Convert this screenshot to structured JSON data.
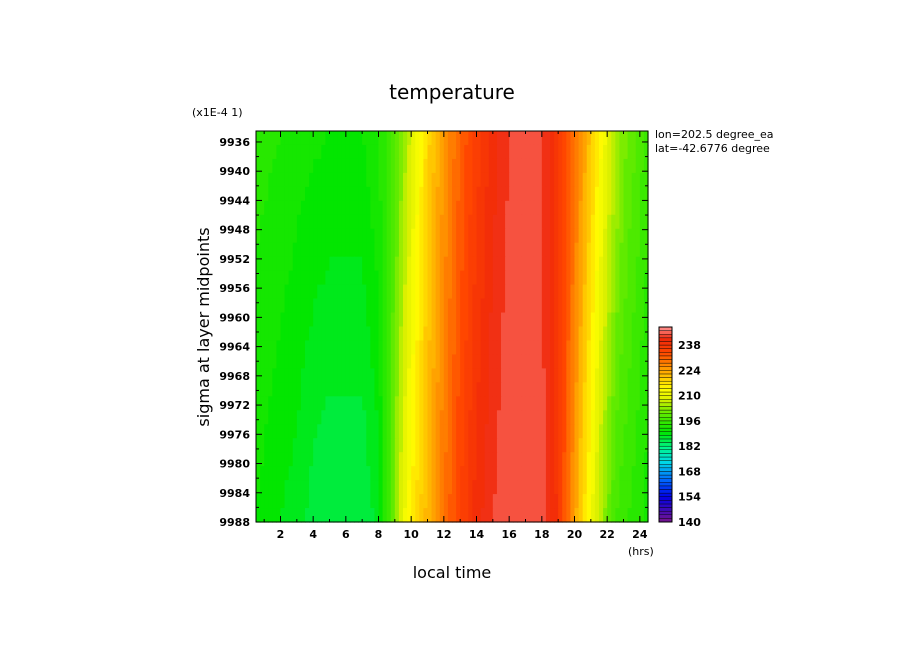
{
  "chart_data": {
    "type": "heatmap",
    "title": "temperature",
    "xlabel": "local time",
    "ylabel": "sigma at layer midpoints",
    "x_units": "(hrs)",
    "y_scale_note": "(x1E-4 1)",
    "xlim": [
      0.5,
      24.5
    ],
    "ylim": [
      9934.5,
      9988
    ],
    "y_inverted": true,
    "x_ticks": [
      2,
      4,
      6,
      8,
      10,
      12,
      14,
      16,
      18,
      20,
      22,
      24
    ],
    "y_ticks": [
      9936,
      9940,
      9944,
      9948,
      9952,
      9956,
      9960,
      9964,
      9968,
      9972,
      9976,
      9980,
      9984,
      9988
    ],
    "annotations": [
      "lon=202.5 degree_ea",
      "lat=-42.6776 degree"
    ],
    "colorbar": {
      "min": 140,
      "max": 248,
      "step": 2,
      "tick_labels": [
        140,
        154,
        168,
        182,
        196,
        210,
        224,
        238
      ]
    },
    "profile_top": [
      {
        "x": 0.5,
        "v": 194
      },
      {
        "x": 2,
        "v": 193
      },
      {
        "x": 3,
        "v": 192
      },
      {
        "x": 5,
        "v": 191
      },
      {
        "x": 7,
        "v": 191
      },
      {
        "x": 8,
        "v": 193
      },
      {
        "x": 9,
        "v": 198
      },
      {
        "x": 9.5,
        "v": 203
      },
      {
        "x": 10,
        "v": 208
      },
      {
        "x": 10.5,
        "v": 213
      },
      {
        "x": 11,
        "v": 218
      },
      {
        "x": 12,
        "v": 225
      },
      {
        "x": 13,
        "v": 231
      },
      {
        "x": 14,
        "v": 236
      },
      {
        "x": 15,
        "v": 240
      },
      {
        "x": 16,
        "v": 243
      },
      {
        "x": 17,
        "v": 244
      },
      {
        "x": 18,
        "v": 243
      },
      {
        "x": 19,
        "v": 238
      },
      {
        "x": 20,
        "v": 230
      },
      {
        "x": 21,
        "v": 220
      },
      {
        "x": 22,
        "v": 210
      },
      {
        "x": 23,
        "v": 202
      },
      {
        "x": 24.5,
        "v": 196
      }
    ],
    "profile_bottom": [
      {
        "x": 0.5,
        "v": 191
      },
      {
        "x": 2,
        "v": 189
      },
      {
        "x": 3,
        "v": 188
      },
      {
        "x": 4,
        "v": 186
      },
      {
        "x": 5,
        "v": 185
      },
      {
        "x": 7,
        "v": 185
      },
      {
        "x": 8,
        "v": 188
      },
      {
        "x": 8.5,
        "v": 195
      },
      {
        "x": 9,
        "v": 203
      },
      {
        "x": 9.5,
        "v": 210
      },
      {
        "x": 10,
        "v": 215
      },
      {
        "x": 11,
        "v": 222
      },
      {
        "x": 12,
        "v": 229
      },
      {
        "x": 13,
        "v": 235
      },
      {
        "x": 14,
        "v": 240
      },
      {
        "x": 15,
        "v": 243
      },
      {
        "x": 16,
        "v": 245
      },
      {
        "x": 17,
        "v": 245
      },
      {
        "x": 18,
        "v": 244
      },
      {
        "x": 18.8,
        "v": 240
      },
      {
        "x": 19.5,
        "v": 231
      },
      {
        "x": 20.5,
        "v": 218
      },
      {
        "x": 21.5,
        "v": 206
      },
      {
        "x": 22.5,
        "v": 197
      },
      {
        "x": 24.5,
        "v": 192
      }
    ]
  }
}
